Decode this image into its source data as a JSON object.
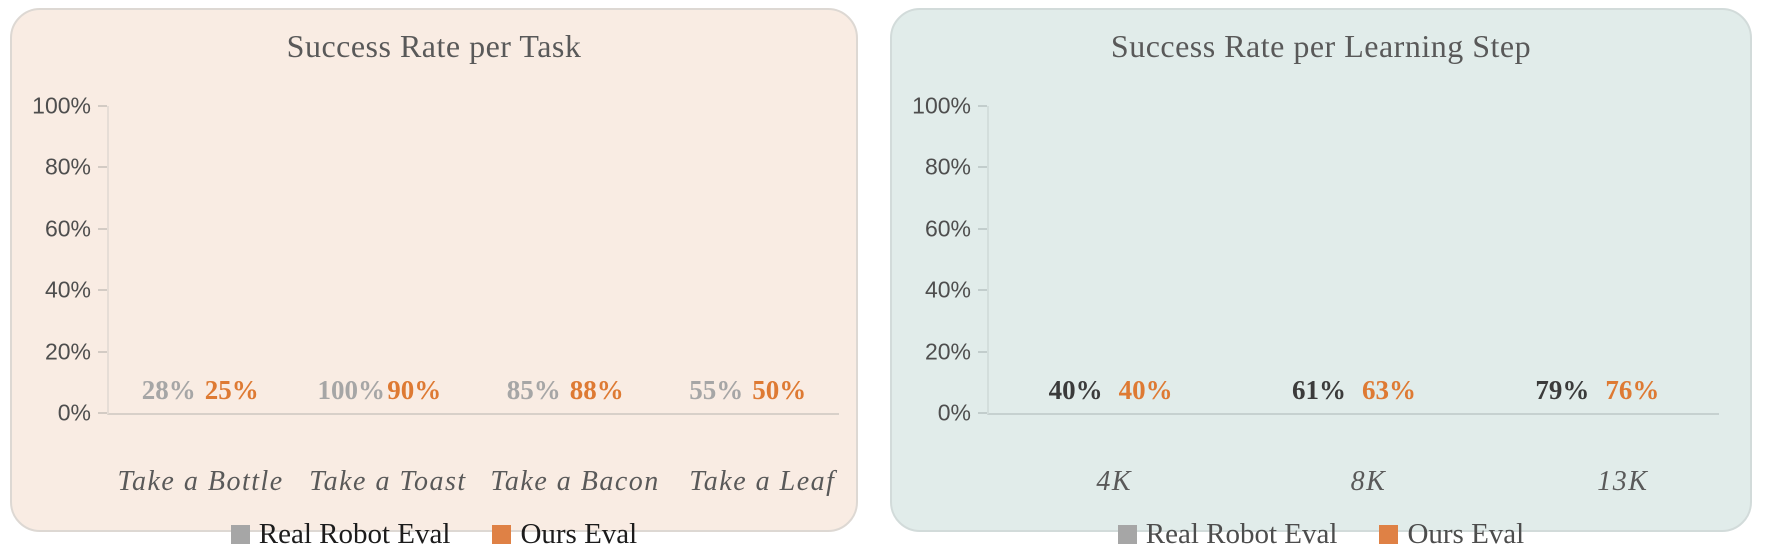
{
  "page": {
    "background": "#FFFFFF"
  },
  "chart_data": [
    {
      "type": "bar",
      "title": "Success Rate per Task",
      "categories": [
        "Take a Bottle",
        "Take a Toast",
        "Take a Bacon",
        "Take a Leaf"
      ],
      "series": [
        {
          "name": "Real Robot Eval",
          "values": [
            28,
            100,
            85,
            55
          ],
          "color": "#A6A6A6",
          "value_label_color": "#A6A6A6"
        },
        {
          "name": "Ours Eval",
          "values": [
            25,
            90,
            88,
            50
          ],
          "color": "#DF8145",
          "value_label_color": "#DE7A33"
        }
      ],
      "value_label_format": "{v}%",
      "xlabel": "",
      "ylabel": "",
      "ylim": [
        0,
        100
      ],
      "y_ticks": [
        "100%",
        "80%",
        "60%",
        "40%",
        "20%",
        "0%"
      ],
      "grid": false,
      "legend_position": "bottom",
      "style": {
        "card_background": "#F9ECE3",
        "card_border": "#DDD8D3",
        "title_color": "#595959",
        "tick_label_color": "#4E4E4E",
        "category_label_color": "#595959",
        "legend_text_color": "#1C1C1C",
        "axis_line_color": "#E6DDD6",
        "tick_mark_color": "#D3CBC4",
        "baseline_color": "#D8D0C9"
      }
    },
    {
      "type": "bar",
      "title": "Success Rate per Learning Step",
      "categories": [
        "4K",
        "8K",
        "13K"
      ],
      "series": [
        {
          "name": "Real Robot Eval",
          "values": [
            40,
            61,
            79
          ],
          "color": "#A6A6A6",
          "value_label_color": "#3B3B3B"
        },
        {
          "name": "Ours Eval",
          "values": [
            40,
            63,
            76
          ],
          "color": "#DF8145",
          "value_label_color": "#DE7A33"
        }
      ],
      "value_label_format": "{v}%",
      "xlabel": "",
      "ylabel": "",
      "ylim": [
        0,
        100
      ],
      "y_ticks": [
        "100%",
        "80%",
        "60%",
        "40%",
        "20%",
        "0%"
      ],
      "grid": false,
      "legend_position": "bottom",
      "style": {
        "card_background": "#E1ECEA",
        "card_border": "#D2DBDA",
        "title_color": "#595959",
        "tick_label_color": "#4E4E4E",
        "category_label_color": "#595959",
        "legend_text_color": "#4D4D4D",
        "axis_line_color": "#D3DEDC",
        "tick_mark_color": "#C2CDCC",
        "baseline_color": "#C6D1D0"
      }
    }
  ]
}
